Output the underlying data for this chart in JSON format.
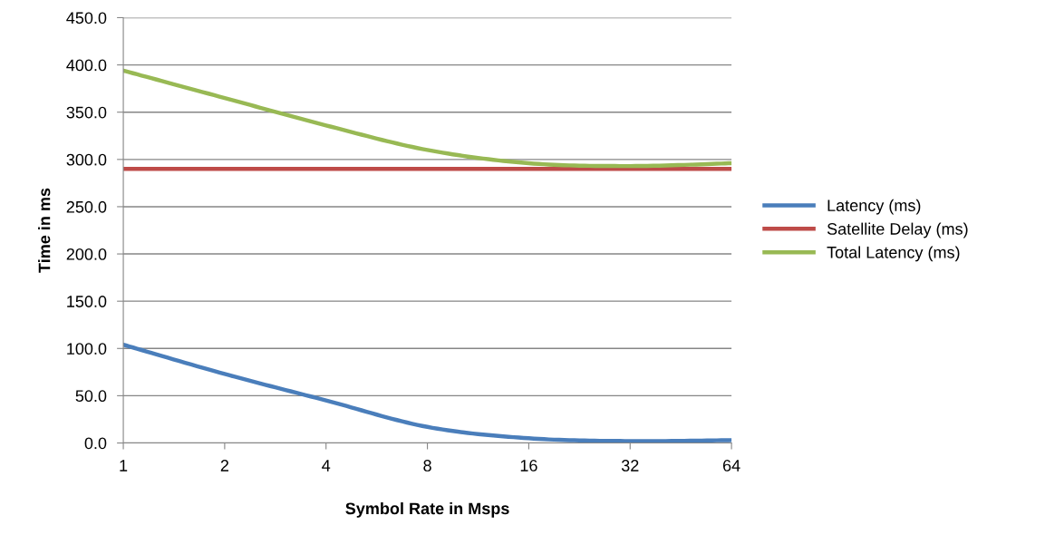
{
  "chart_data": {
    "type": "line",
    "xlabel": "Symbol Rate in Msps",
    "ylabel": "Time in ms",
    "categories": [
      "1",
      "2",
      "4",
      "8",
      "16",
      "32",
      "64"
    ],
    "series": [
      {
        "name": "Latency (ms)",
        "color": "#4a7ebb",
        "values": [
          104,
          73,
          45,
          17,
          5,
          2,
          3
        ]
      },
      {
        "name": "Satellite Delay (ms)",
        "color": "#be4b48",
        "values": [
          290,
          290,
          290,
          290,
          290,
          290,
          290
        ]
      },
      {
        "name": "Total Latency (ms)",
        "color": "#98b954",
        "values": [
          394,
          365,
          336,
          310,
          296,
          293,
          296
        ]
      }
    ],
    "ylim": [
      0,
      450
    ],
    "yticks": [
      {
        "value": 0,
        "label": "0.0"
      },
      {
        "value": 50,
        "label": "50.0"
      },
      {
        "value": 100,
        "label": "100.0"
      },
      {
        "value": 150,
        "label": "150.0"
      },
      {
        "value": 200,
        "label": "200.0"
      },
      {
        "value": 250,
        "label": "250.0"
      },
      {
        "value": 300,
        "label": "300.0"
      },
      {
        "value": 350,
        "label": "350.0"
      },
      {
        "value": 400,
        "label": "400.0"
      },
      {
        "value": 450,
        "label": "450.0"
      }
    ],
    "grid": "y",
    "legend": "right",
    "marker": "none"
  }
}
